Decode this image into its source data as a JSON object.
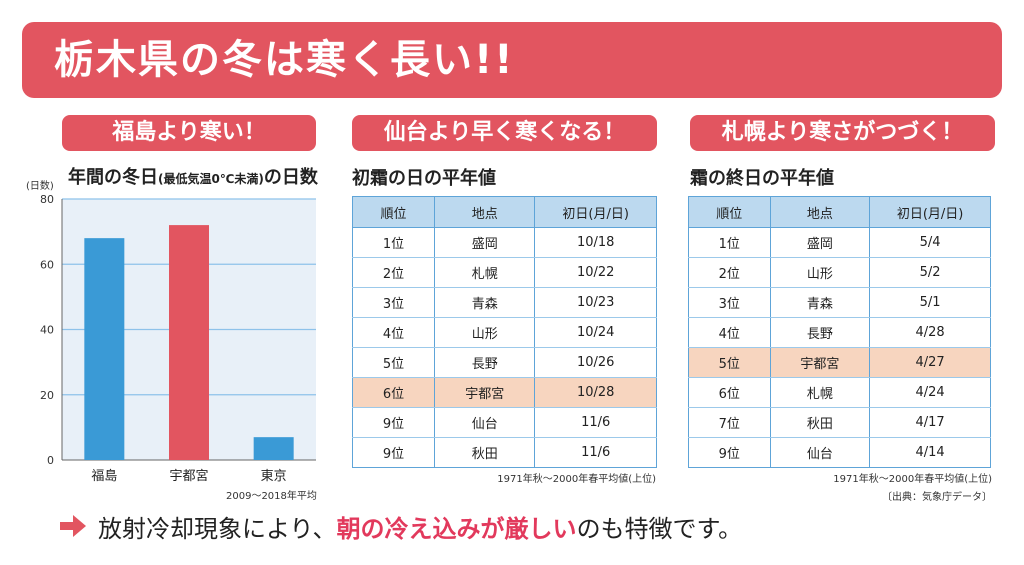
{
  "banner": {
    "title": "栃木県の冬は寒く長い!!"
  },
  "panels": [
    {
      "pill": "福島より寒い！",
      "subtitle_main": "年間の冬日",
      "subtitle_small": "(最低気温0℃未満)",
      "subtitle_tail": "の日数"
    },
    {
      "pill": "仙台より早く寒くなる！",
      "subtitle": "初霜の日の平年値"
    },
    {
      "pill": "札幌より寒さがつづく！",
      "subtitle": "霜の終日の平年値"
    }
  ],
  "chart_data": {
    "type": "bar",
    "categories": [
      "福島",
      "宇都宮",
      "東京"
    ],
    "values": [
      68,
      72,
      7
    ],
    "ylabel": "(日数)",
    "ylim": [
      0,
      80
    ],
    "yticks": [
      0,
      20,
      40,
      60,
      80
    ],
    "note": "2009〜2018年平均",
    "bar_colors": [
      "#3a9ad6",
      "#e25560",
      "#3a9ad6"
    ],
    "grid": true
  },
  "table_first_frost": {
    "headers": [
      "順位",
      "地点",
      "初日(月/日)"
    ],
    "rows": [
      [
        "1位",
        "盛岡",
        "10/18"
      ],
      [
        "2位",
        "札幌",
        "10/22"
      ],
      [
        "3位",
        "青森",
        "10/23"
      ],
      [
        "4位",
        "山形",
        "10/24"
      ],
      [
        "5位",
        "長野",
        "10/26"
      ],
      [
        "6位",
        "宇都宮",
        "10/28"
      ],
      [
        "9位",
        "仙台",
        "11/6"
      ],
      [
        "9位",
        "秋田",
        "11/6"
      ]
    ],
    "highlight_row": 5,
    "note": "1971年秋〜2000年春平均値(上位)"
  },
  "table_last_frost": {
    "headers": [
      "順位",
      "地点",
      "初日(月/日)"
    ],
    "rows": [
      [
        "1位",
        "盛岡",
        "5/4"
      ],
      [
        "2位",
        "山形",
        "5/2"
      ],
      [
        "3位",
        "青森",
        "5/1"
      ],
      [
        "4位",
        "長野",
        "4/28"
      ],
      [
        "5位",
        "宇都宮",
        "4/27"
      ],
      [
        "6位",
        "札幌",
        "4/24"
      ],
      [
        "7位",
        "秋田",
        "4/17"
      ],
      [
        "9位",
        "仙台",
        "4/14"
      ]
    ],
    "highlight_row": 4,
    "note": "1971年秋〜2000年春平均値(上位)",
    "source": "〔出典：気象庁データ〕"
  },
  "footer": {
    "text_pre": "放射冷却現象により、",
    "text_accent": "朝の冷え込みが厳しい",
    "text_post": "のも特徴です。"
  },
  "colors": {
    "accent": "#e25560",
    "blue": "#3a9ad6",
    "highlight": "#f7d5bf"
  }
}
